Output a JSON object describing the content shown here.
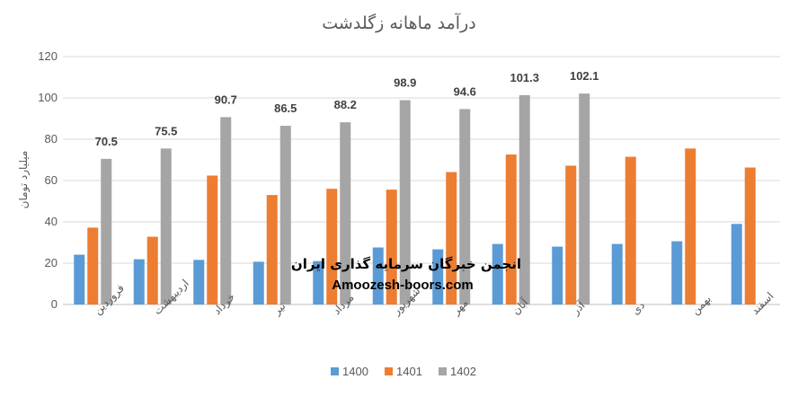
{
  "chart_data": {
    "type": "bar",
    "title": "درآمد ماهانه زگلدشت",
    "ylabel": "میلیارد تومان",
    "xlabel": "",
    "ylim": [
      0,
      120
    ],
    "yticks": [
      0,
      20,
      40,
      60,
      80,
      100,
      120
    ],
    "grid": true,
    "legend_position": "bottom",
    "categories": [
      "فروردین",
      "اردیبهشت",
      "خرداد",
      "تیر",
      "مرداد",
      "شهریور",
      "مهر",
      "آبان",
      "آذر",
      "دی",
      "بهمن",
      "اسفند"
    ],
    "series": [
      {
        "name": "1400",
        "color": "#5B9BD5",
        "values": [
          24.1,
          21.9,
          21.6,
          20.7,
          21.0,
          27.6,
          26.7,
          29.3,
          28.0,
          29.3,
          30.6,
          39.0
        ]
      },
      {
        "name": "1401",
        "color": "#ED7D31",
        "values": [
          37.2,
          32.8,
          62.4,
          53.0,
          56.0,
          55.6,
          64.1,
          72.6,
          67.2,
          71.5,
          75.5,
          66.3
        ]
      },
      {
        "name": "1402",
        "color": "#A5A5A5",
        "show_labels": true,
        "values": [
          70.5,
          75.5,
          90.7,
          86.5,
          88.2,
          98.9,
          94.6,
          101.3,
          102.1,
          null,
          null,
          null
        ]
      }
    ]
  },
  "watermark": {
    "line1": "انجمن خبرگان سرمایه گذاری ایران",
    "line2": "Amoozesh-boors.com"
  }
}
